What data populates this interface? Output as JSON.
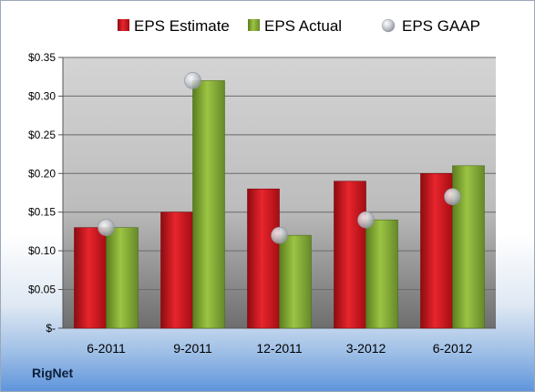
{
  "company": "RigNet",
  "chart_data": {
    "type": "bar",
    "categories": [
      "6-2011",
      "9-2011",
      "12-2011",
      "3-2012",
      "6-2012"
    ],
    "series": [
      {
        "name": "EPS Estimate",
        "type": "bar",
        "color": "#c8121b",
        "values": [
          0.13,
          0.15,
          0.18,
          0.19,
          0.2
        ]
      },
      {
        "name": "EPS Actual",
        "type": "bar",
        "color": "#7fa832",
        "values": [
          0.13,
          0.32,
          0.12,
          0.14,
          0.21
        ]
      },
      {
        "name": "EPS GAAP",
        "type": "marker",
        "color": "#b8bcc4",
        "values": [
          0.13,
          0.32,
          0.12,
          0.14,
          0.17
        ]
      }
    ],
    "ylim": [
      0,
      0.35
    ],
    "y_ticks": [
      {
        "value": 0,
        "label": "$-"
      },
      {
        "value": 0.05,
        "label": "$0.05"
      },
      {
        "value": 0.1,
        "label": "$0.10"
      },
      {
        "value": 0.15,
        "label": "$0.15"
      },
      {
        "value": 0.2,
        "label": "$0.20"
      },
      {
        "value": 0.25,
        "label": "$0.25"
      },
      {
        "value": 0.3,
        "label": "$0.30"
      },
      {
        "value": 0.35,
        "label": "$0.35"
      }
    ],
    "grid": true,
    "legend_position": "top"
  }
}
